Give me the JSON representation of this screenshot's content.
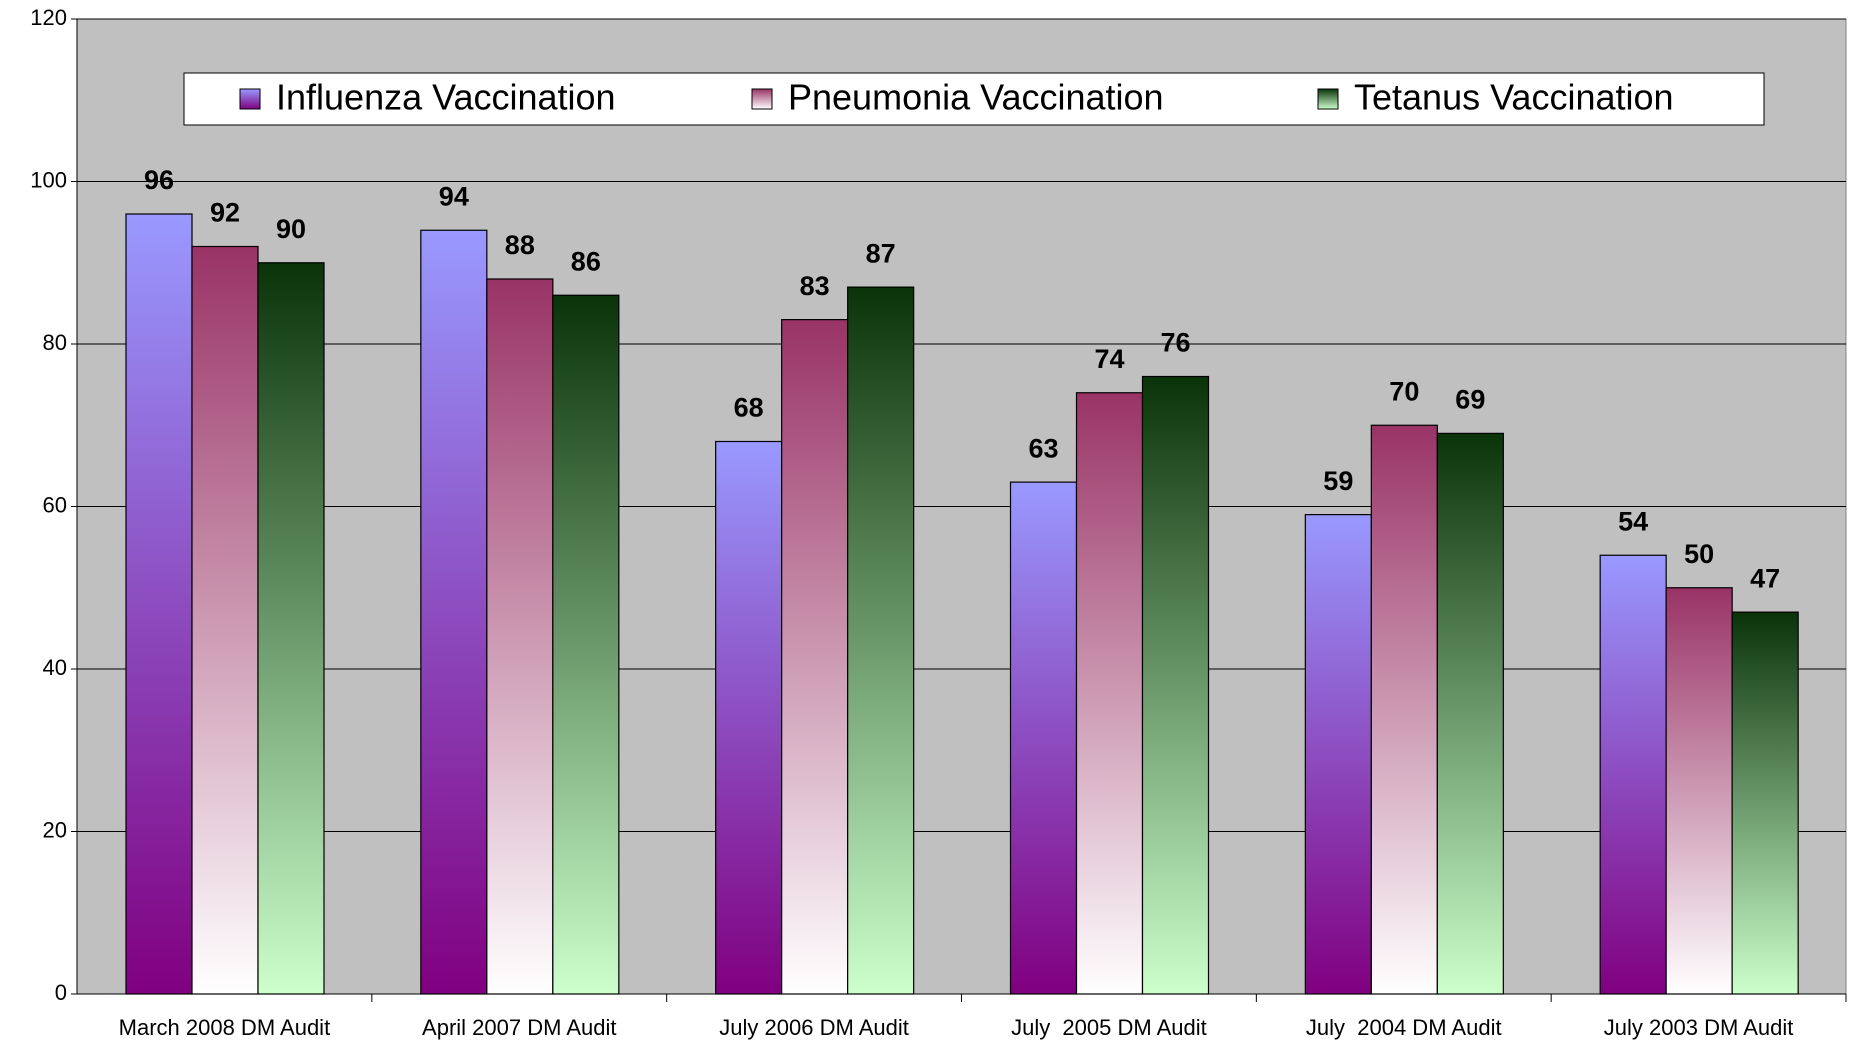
{
  "chart_data": {
    "type": "bar",
    "categories": [
      "March 2008 DM Audit",
      "April 2007 DM Audit",
      "July 2006 DM Audit",
      "July  2005 DM Audit",
      "July  2004 DM Audit",
      "July 2003 DM Audit"
    ],
    "series": [
      {
        "name": "Influenza Vaccination",
        "color": "#9999ff",
        "gradient_to": "#800080",
        "values": [
          96,
          94,
          68,
          63,
          59,
          54
        ]
      },
      {
        "name": "Pneumonia Vaccination",
        "color": "#993366",
        "gradient_to": "#ffffff",
        "values": [
          92,
          88,
          83,
          74,
          70,
          50
        ]
      },
      {
        "name": "Tetanus Vaccination",
        "color": "#0a330a",
        "gradient_to": "#ccffcc",
        "values": [
          90,
          86,
          87,
          76,
          69,
          47
        ]
      }
    ],
    "ylim": [
      0,
      120
    ],
    "yticks": [
      0,
      20,
      40,
      60,
      80,
      100,
      120
    ],
    "grid": true,
    "legend": "top"
  }
}
